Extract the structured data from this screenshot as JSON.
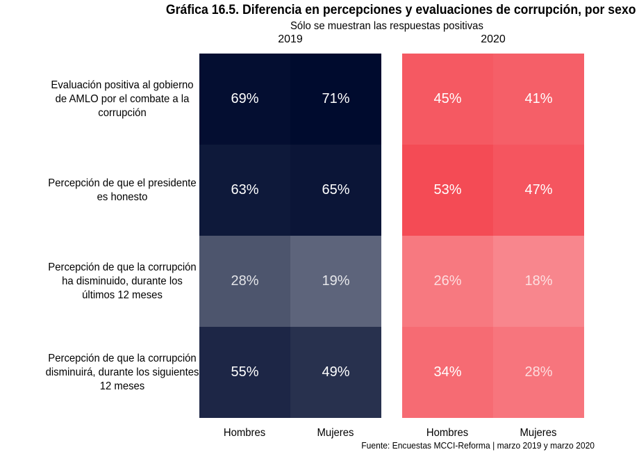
{
  "chart_data": {
    "type": "heatmap",
    "title": "Gráfica 16.5. Diferencia en percepciones y evaluaciones de corrupción, por sexo",
    "subtitle": "Sólo se muestran las respuestas positivas",
    "caption": "Fuente: Encuestas MCCI-Reforma | marzo 2019 y marzo 2020",
    "rows": [
      "Evaluación positiva al gobierno de AMLO por el combate a la corrupción",
      "Percepción de que el presidente es honesto",
      "Percepción de que la corrupción ha disminuido, durante los últimos 12 meses",
      "Percepción de que la corrupción disminuirá, durante los siguientes 12 meses"
    ],
    "columns": [
      "Hombres",
      "Mujeres"
    ],
    "value_suffix": "%",
    "panels": [
      {
        "label": "2019",
        "base_color": "#000b2e",
        "values": [
          [
            69,
            71
          ],
          [
            63,
            65
          ],
          [
            28,
            19
          ],
          [
            55,
            49
          ]
        ]
      },
      {
        "label": "2020",
        "base_color": "#f44b55",
        "values": [
          [
            45,
            41
          ],
          [
            53,
            47
          ],
          [
            26,
            18
          ],
          [
            34,
            28
          ]
        ]
      }
    ]
  }
}
